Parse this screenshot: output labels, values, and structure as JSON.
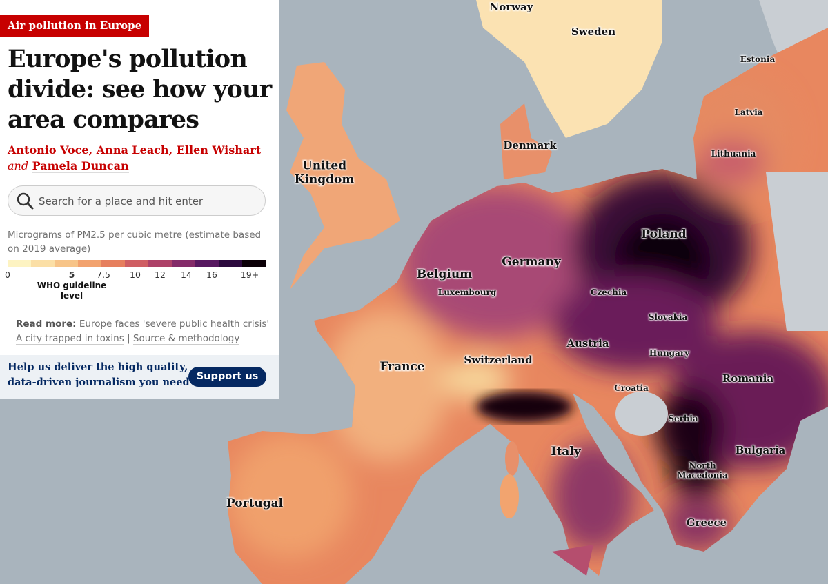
{
  "header": {
    "kicker": "Air pollution in Europe",
    "title": "Europe's pollution divide: see how your area compares",
    "byline": {
      "authors": [
        "Antonio Voce",
        "Anna Leach",
        "Ellen Wishart",
        "Pamela Duncan"
      ],
      "separator": ",",
      "conjunction": "and"
    }
  },
  "search": {
    "placeholder": "Search for a place and hit enter"
  },
  "legend": {
    "caption": "Micrograms of PM2.5 per cubic metre (estimate based on 2019 average)",
    "ticks": [
      "0",
      "5",
      "7.5",
      "10",
      "12",
      "14",
      "16",
      "19+"
    ],
    "guideline": "WHO guideline level",
    "colors": [
      "#fdf3c2",
      "#fbdfa6",
      "#f7c488",
      "#f2a26e",
      "#e67f5e",
      "#cf5e63",
      "#ad4168",
      "#842b69",
      "#571860",
      "#2c0a3e",
      "#0b0007"
    ]
  },
  "read_more": {
    "label": "Read more:",
    "links": [
      "Europe faces 'severe public health crisis'",
      "A city trapped in toxins",
      "Source & methodology"
    ],
    "separator": "|"
  },
  "support": {
    "text": "Help us deliver the high quality, data-driven journalism you need",
    "button": "Support us"
  },
  "map": {
    "labels": [
      "Norway",
      "Sweden",
      "Estonia",
      "Latvia",
      "Denmark",
      "Lithuania",
      "United Kingdom",
      "Poland",
      "Germany",
      "Belgium",
      "Luxembourg",
      "Czechia",
      "Slovakia",
      "Austria",
      "Hungary",
      "Switzerland",
      "France",
      "Romania",
      "Croatia",
      "Serbia",
      "Italy",
      "Bulgaria",
      "North Macedonia",
      "Portugal",
      "Greece"
    ]
  }
}
